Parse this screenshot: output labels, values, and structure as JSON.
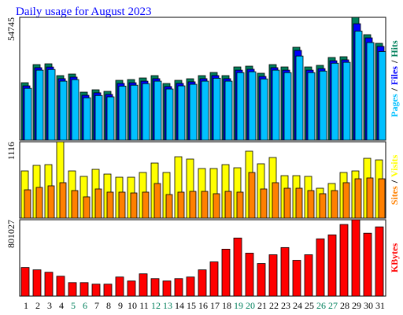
{
  "chart_data": [
    {
      "type": "bar",
      "title": "Daily usage for August 2023",
      "title_color": "#0000ff",
      "ylim": [
        0,
        54745
      ],
      "yticks": [
        54745
      ],
      "legend_separator": "/",
      "series": [
        {
          "name": "Hits",
          "color": "#00805c",
          "values": [
            25616,
            33686,
            34037,
            28774,
            29476,
            21405,
            22458,
            21756,
            26669,
            27019,
            27721,
            28774,
            25265,
            26669,
            27370,
            28774,
            30177,
            28774,
            32634,
            32985,
            29827,
            33686,
            32634,
            41406,
            32634,
            33336,
            36845,
            37196,
            54745,
            47021,
            43161
          ]
        },
        {
          "name": "Files",
          "color": "#0000ff",
          "values": [
            24200,
            32300,
            32600,
            27400,
            28100,
            20000,
            21100,
            20400,
            25300,
            25600,
            26300,
            27400,
            23900,
            25300,
            26000,
            27400,
            28800,
            27400,
            31200,
            31600,
            28400,
            32300,
            31200,
            40000,
            31200,
            31900,
            35400,
            35800,
            51900,
            45600,
            41800
          ]
        },
        {
          "name": "Pages",
          "color": "#00c0ff",
          "values": [
            23100,
            31200,
            31500,
            26300,
            27000,
            18900,
            19900,
            19300,
            24100,
            24500,
            25200,
            26300,
            22800,
            24200,
            24900,
            26300,
            27600,
            26300,
            30100,
            30500,
            27300,
            31200,
            30100,
            37500,
            30100,
            30800,
            34300,
            34700,
            48600,
            43500,
            39500
          ]
        }
      ]
    },
    {
      "type": "bar",
      "ylim": [
        0,
        1116
      ],
      "yticks": [
        1116
      ],
      "legend_separator": "/",
      "series": [
        {
          "name": "Visits",
          "color": "#ffff00",
          "values": [
            690,
            771,
            782,
            1116,
            690,
            610,
            713,
            644,
            598,
            598,
            667,
            805,
            667,
            897,
            863,
            725,
            725,
            782,
            736,
            978,
            794,
            886,
            621,
            621,
            610,
            437,
            506,
            667,
            690,
            874,
            851
          ]
        },
        {
          "name": "Sites",
          "color": "#ff8000",
          "values": [
            414,
            449,
            472,
            518,
            403,
            311,
            426,
            380,
            380,
            368,
            380,
            506,
            345,
            380,
            391,
            391,
            357,
            391,
            380,
            667,
            426,
            518,
            437,
            437,
            403,
            357,
            403,
            518,
            575,
            587,
            575
          ]
        }
      ]
    },
    {
      "type": "bar",
      "ylim": [
        0,
        801027
      ],
      "yticks": [
        801027
      ],
      "categories": [
        "1",
        "2",
        "3",
        "4",
        "5",
        "6",
        "7",
        "8",
        "9",
        "10",
        "11",
        "12",
        "13",
        "14",
        "15",
        "16",
        "17",
        "18",
        "19",
        "20",
        "21",
        "22",
        "23",
        "24",
        "25",
        "26",
        "27",
        "28",
        "29",
        "30",
        "31"
      ],
      "category_colors": [
        "#000000",
        "#000000",
        "#000000",
        "#000000",
        "#00805c",
        "#00805c",
        "#000000",
        "#000000",
        "#000000",
        "#000000",
        "#000000",
        "#00805c",
        "#00805c",
        "#000000",
        "#000000",
        "#000000",
        "#000000",
        "#000000",
        "#00805c",
        "#00805c",
        "#000000",
        "#000000",
        "#000000",
        "#000000",
        "#000000",
        "#00805c",
        "#00805c",
        "#000000",
        "#000000",
        "#000000",
        "#000000"
      ],
      "series": [
        {
          "name": "KBytes",
          "color": "#ff0000",
          "values": [
            300384,
            275352,
            250320,
            208600,
            141848,
            141848,
            125160,
            125160,
            200256,
            158536,
            233632,
            183568,
            158536,
            183568,
            200256,
            275352,
            358792,
            492296,
            609112,
            450576,
            342104,
            433888,
            508984,
            375480,
            433888,
            600768,
            642488,
            750960,
            801027,
            659176,
            725928
          ]
        }
      ]
    }
  ]
}
